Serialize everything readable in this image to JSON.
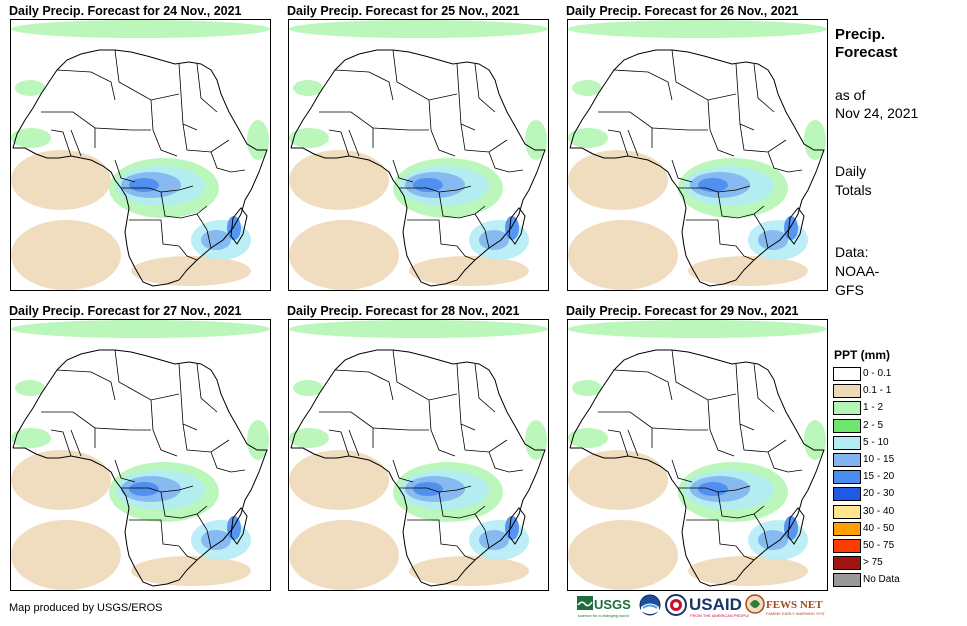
{
  "panels": [
    {
      "title": "Daily Precip. Forecast for 24 Nov., 2021"
    },
    {
      "title": "Daily Precip. Forecast for 25 Nov., 2021"
    },
    {
      "title": "Daily Precip. Forecast for 26 Nov., 2021"
    },
    {
      "title": "Daily Precip. Forecast for 27 Nov., 2021"
    },
    {
      "title": "Daily Precip. Forecast for 28 Nov., 2021"
    },
    {
      "title": "Daily Precip. Forecast for 29 Nov., 2021"
    }
  ],
  "sidebar": {
    "title_line1": "Precip.",
    "title_line2": "Forecast",
    "asof_line1": "as of",
    "asof_line2": "Nov 24, 2021",
    "daily_line1": "Daily",
    "daily_line2": "Totals",
    "data_line1": "Data:",
    "data_line2": "NOAA-",
    "data_line3": "GFS"
  },
  "legend": {
    "title": "PPT (mm)",
    "items": [
      {
        "label": "0 - 0.1",
        "color": "#ffffff"
      },
      {
        "label": "0.1 - 1",
        "color": "#eed9b8"
      },
      {
        "label": "1 - 2",
        "color": "#b4f5b4"
      },
      {
        "label": "2 - 5",
        "color": "#6ee66e"
      },
      {
        "label": "5 - 10",
        "color": "#b4ecf5"
      },
      {
        "label": "10 - 15",
        "color": "#82b4f0"
      },
      {
        "label": "15 - 20",
        "color": "#4b8cf0"
      },
      {
        "label": "20 - 30",
        "color": "#1e5ae6"
      },
      {
        "label": "30 - 40",
        "color": "#ffe68c"
      },
      {
        "label": "40 - 50",
        "color": "#ffa000"
      },
      {
        "label": "50 - 75",
        "color": "#ff3c00"
      },
      {
        "label": "> 75",
        "color": "#a01414"
      },
      {
        "label": "No Data",
        "color": "#999999"
      }
    ]
  },
  "credit": "Map produced by USGS/EROS",
  "logos": {
    "usgs": "USGS",
    "usaid": "USAID",
    "fewsnet": "FEWS NET"
  }
}
